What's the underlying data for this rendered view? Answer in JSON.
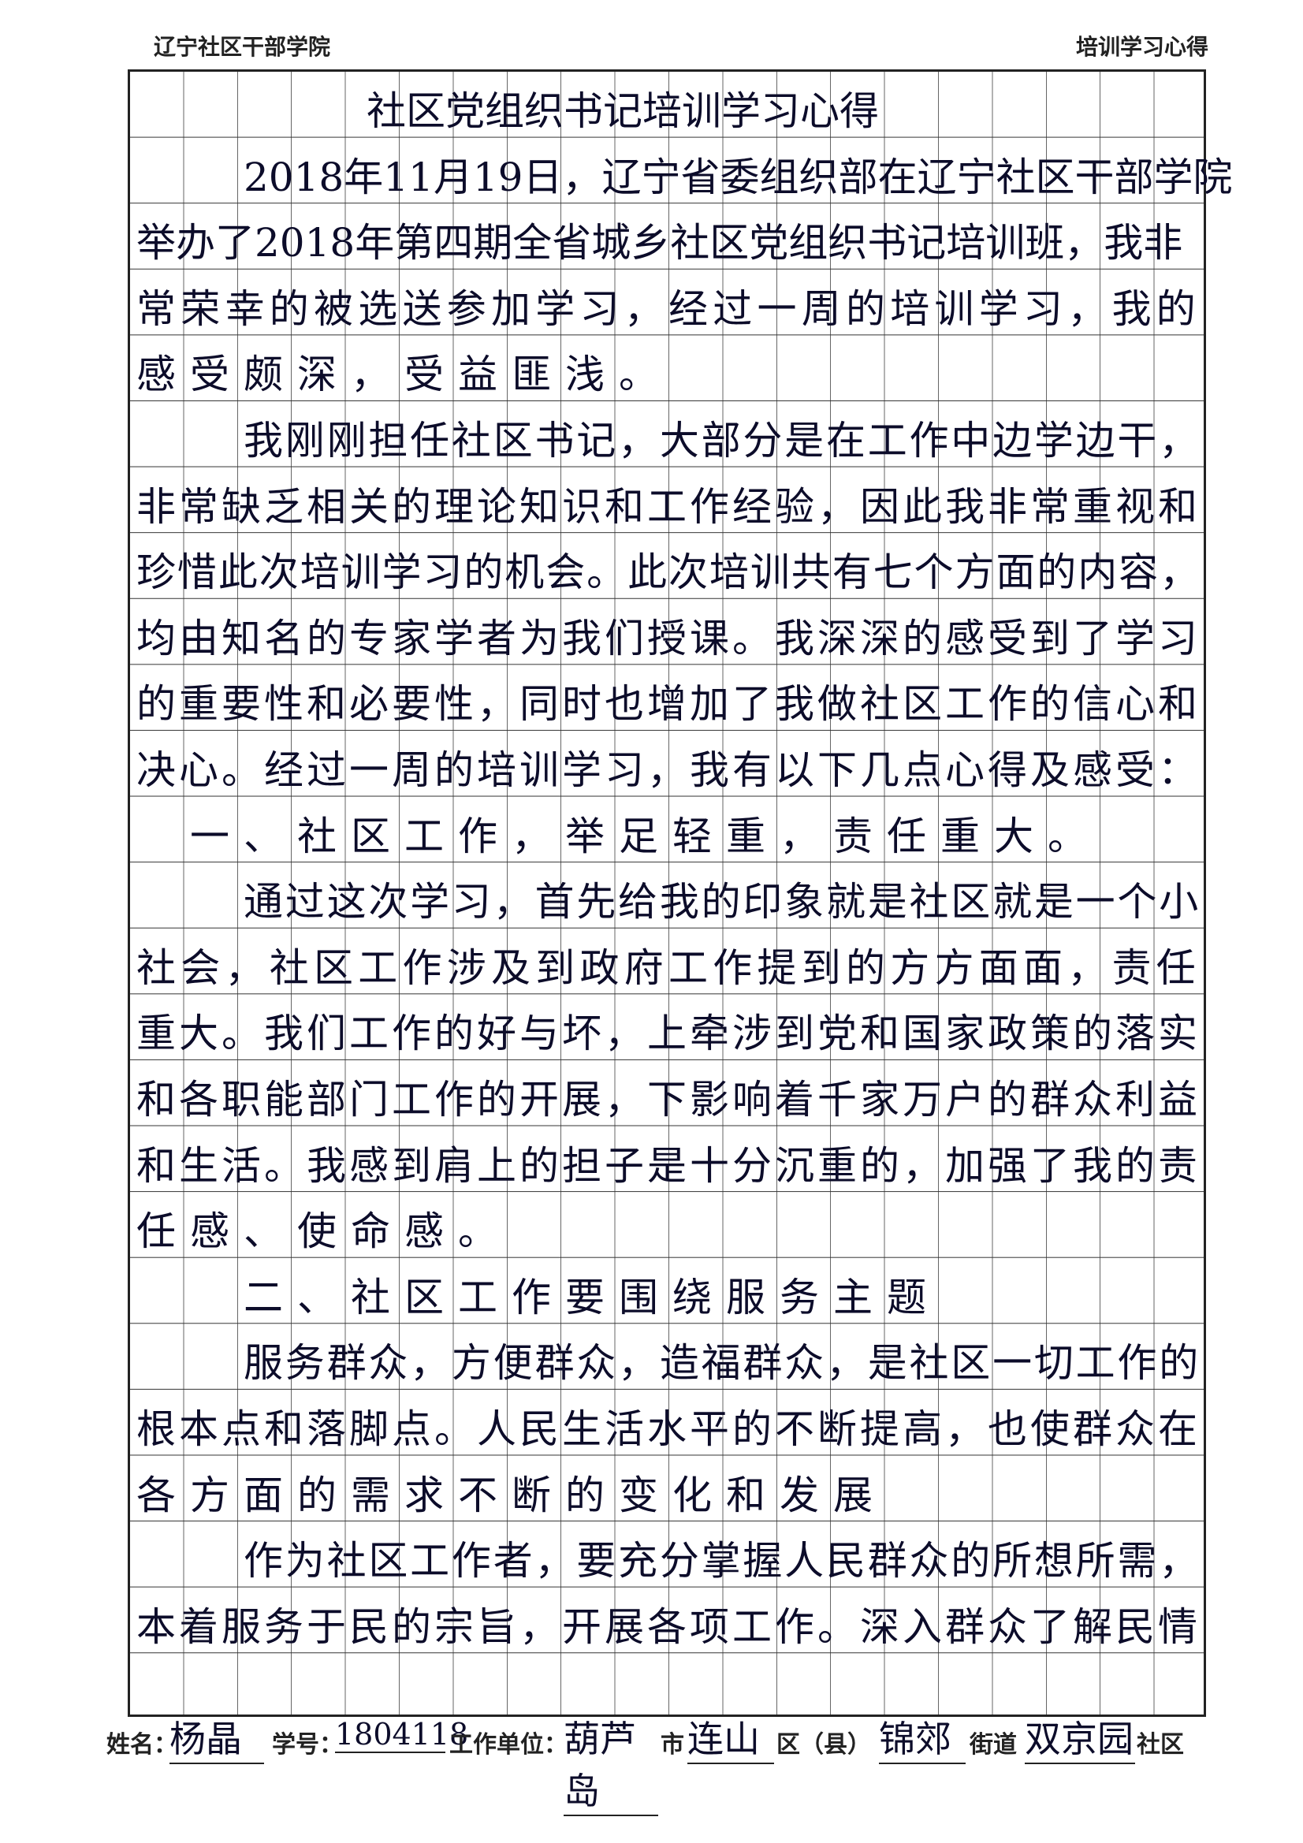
{
  "header": {
    "school": "辽宁社区干部学院",
    "form_title": "培训学习心得"
  },
  "title": "社区党组织书记培训学习心得",
  "lines": [
    "2018年11月19日，辽宁省委组织部在辽宁社区干部学院",
    "举办了2018年第四期全省城乡社区党组织书记培训班，我非",
    "常荣幸的被选送参加学习，经过一周的培训学习，我的",
    "感受颇深，受益匪浅。",
    "我刚刚担任社区书记，大部分是在工作中边学边干，",
    "非常缺乏相关的理论知识和工作经验，因此我非常重视和",
    "珍惜此次培训学习的机会。此次培训共有七个方面的内容，",
    "均由知名的专家学者为我们授课。我深深的感受到了学习",
    "的重要性和必要性，同时也增加了我做社区工作的信心和",
    "决心。经过一周的培训学习，我有以下几点心得及感受：",
    "一、社区工作，举足轻重，责任重大。",
    "通过这次学习，首先给我的印象就是社区就是一个小",
    "社会，社区工作涉及到政府工作提到的方方面面，责任",
    "重大。我们工作的好与坏，上牵涉到党和国家政策的落实",
    "和各职能部门工作的开展，下影响着千家万户的群众利益",
    "和生活。我感到肩上的担子是十分沉重的，加强了我的责",
    "任感、使命感。",
    "二、社区工作要围绕服务主题",
    "服务群众，方便群众，造福群众，是社区一切工作的",
    "根本点和落脚点。人民生活水平的不断提高，也使群众在",
    "各方面的需求不断的变化和发展",
    "作为社区工作者，要充分掌握人民群众的所想所需，",
    "本着服务于民的宗旨，开展各项工作。深入群众了解民情"
  ],
  "footer": {
    "name_label": "姓名：",
    "name": "杨晶",
    "id_label": "学号：",
    "id": "1804118",
    "unit_label": "工作单位：",
    "city": "葫芦岛",
    "city_label": "市",
    "district": "连山",
    "district_label": "区（县）",
    "street": "锦郊",
    "street_label": "街道",
    "community": "双京园",
    "community_label": "社区"
  }
}
